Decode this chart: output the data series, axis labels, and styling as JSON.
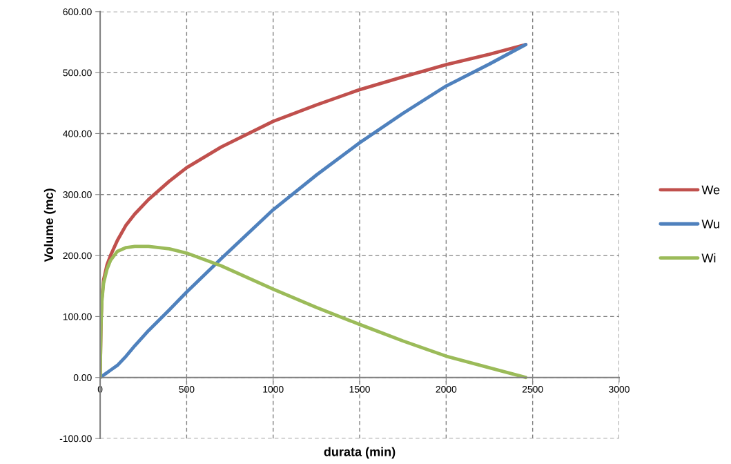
{
  "chart_data": {
    "type": "line",
    "xlabel": "durata (min)",
    "ylabel": "Volume (mc)",
    "x": [
      0,
      5,
      10,
      20,
      40,
      60,
      100,
      150,
      200,
      280,
      400,
      500,
      700,
      1000,
      1250,
      1500,
      1750,
      2000,
      2250,
      2460
    ],
    "series": [
      {
        "name": "We",
        "color": "#c0504d",
        "values": [
          0,
          90,
          130,
          160,
          185,
          200,
          225,
          250,
          268,
          292,
          322,
          344,
          378,
          420,
          447,
          472,
          493,
          513,
          530,
          546
        ]
      },
      {
        "name": "Wu",
        "color": "#4f81bd",
        "values": [
          0,
          1,
          2,
          4,
          8,
          12,
          20,
          35,
          52,
          77,
          111,
          140,
          195,
          275,
          332,
          385,
          433,
          478,
          514,
          546
        ]
      },
      {
        "name": "Wi",
        "color": "#9bbb59",
        "values": [
          0,
          85,
          125,
          155,
          178,
          192,
          207,
          213,
          215,
          215,
          211,
          204,
          183,
          145,
          115,
          87,
          60,
          35,
          16,
          0
        ]
      }
    ],
    "xlim": [
      0,
      3000
    ],
    "xticks": [
      0,
      500,
      1000,
      1500,
      2000,
      2500,
      3000
    ],
    "ylim": [
      -100,
      600
    ],
    "yticks": [
      {
        "value": -100,
        "label": "-100.00"
      },
      {
        "value": 0,
        "label": "0.00"
      },
      {
        "value": 100,
        "label": "100.00"
      },
      {
        "value": 200,
        "label": "200.00"
      },
      {
        "value": 300,
        "label": "300.00"
      },
      {
        "value": 400,
        "label": "400.00"
      },
      {
        "value": 500,
        "label": "500.00"
      },
      {
        "value": 600,
        "label": "600.00"
      }
    ],
    "grid": true,
    "legend": "right",
    "marker": "none",
    "line_style": "solid"
  }
}
